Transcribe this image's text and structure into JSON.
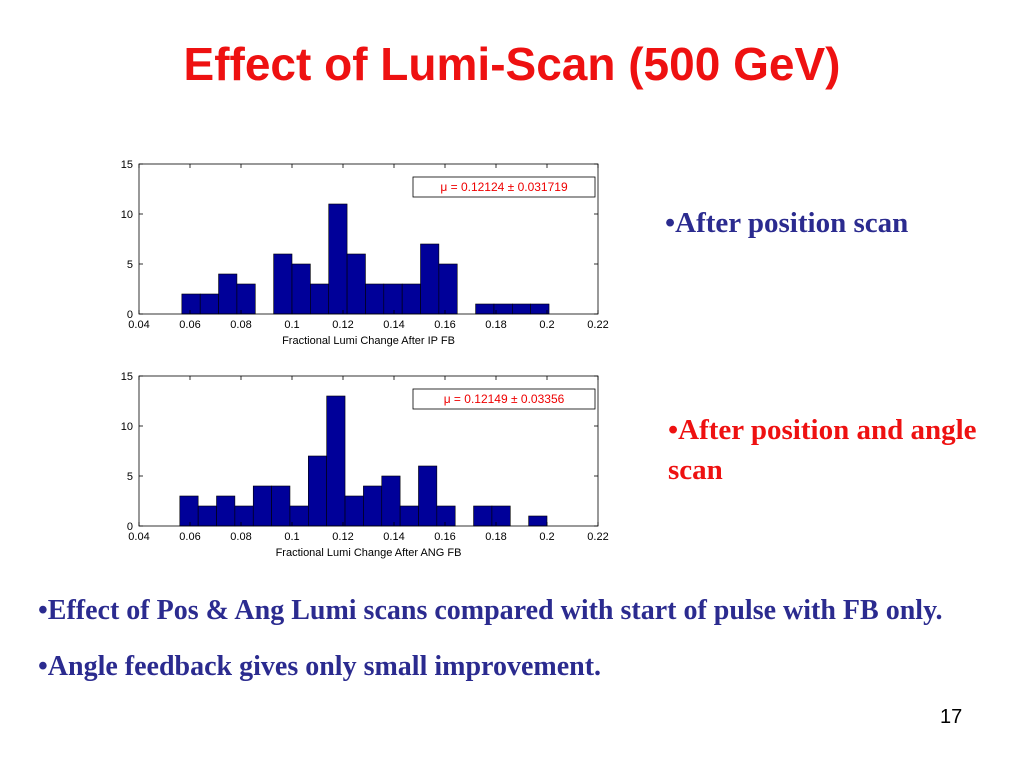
{
  "slide": {
    "title": "Effect of Lumi-Scan (500 GeV)",
    "notes": {
      "top": "•After position scan",
      "bottom": "•After position and angle scan"
    },
    "bullets": [
      "•Effect of Pos & Ang Lumi scans compared with start of pulse with FB only.",
      "•Angle feedback gives only small improvement."
    ],
    "page_number": "17"
  },
  "colors": {
    "title": "#ee1111",
    "bullet_text": "#2b2b8f",
    "bar_fill": "#000099",
    "annotation": "#ee0000"
  },
  "chart_data": [
    {
      "type": "bar",
      "xlabel": "Fractional Lumi Change After IP FB",
      "ylabel": "",
      "xlim": [
        0.04,
        0.22
      ],
      "ylim": [
        0,
        15
      ],
      "xticks": [
        "0.04",
        "0.06",
        "0.08",
        "0.1",
        "0.12",
        "0.14",
        "0.16",
        "0.18",
        "0.2",
        "0.22"
      ],
      "yticks": [
        "0",
        "5",
        "10",
        "15"
      ],
      "bin_width": 0.0072,
      "bin_starts": [
        0.0568,
        0.064,
        0.0712,
        0.0784,
        0.0928,
        0.1,
        0.1072,
        0.1144,
        0.1216,
        0.1288,
        0.136,
        0.1432,
        0.1504,
        0.1576,
        0.172,
        0.1792,
        0.1864,
        0.1936
      ],
      "values": [
        2,
        2,
        4,
        3,
        6,
        5,
        3,
        11,
        6,
        3,
        3,
        3,
        7,
        5,
        1,
        1,
        1,
        1
      ],
      "annotation": "μ = 0.12124 ± 0.031719",
      "grid": false
    },
    {
      "type": "bar",
      "xlabel": "Fractional Lumi Change After ANG FB",
      "ylabel": "",
      "xlim": [
        0.04,
        0.22
      ],
      "ylim": [
        0,
        15
      ],
      "xticks": [
        "0.04",
        "0.06",
        "0.08",
        "0.1",
        "0.12",
        "0.14",
        "0.16",
        "0.18",
        "0.2",
        "0.22"
      ],
      "yticks": [
        "0",
        "5",
        "10",
        "15"
      ],
      "bin_width": 0.0072,
      "bin_starts": [
        0.056,
        0.0632,
        0.0704,
        0.0776,
        0.0848,
        0.092,
        0.0992,
        0.1064,
        0.1136,
        0.1208,
        0.128,
        0.1352,
        0.1424,
        0.1496,
        0.1568,
        0.1712,
        0.1784,
        0.1928
      ],
      "values": [
        3,
        2,
        3,
        2,
        4,
        4,
        2,
        7,
        13,
        3,
        4,
        5,
        2,
        6,
        2,
        2,
        2,
        1
      ],
      "annotation": "μ = 0.12149 ± 0.03356",
      "grid": false
    }
  ]
}
